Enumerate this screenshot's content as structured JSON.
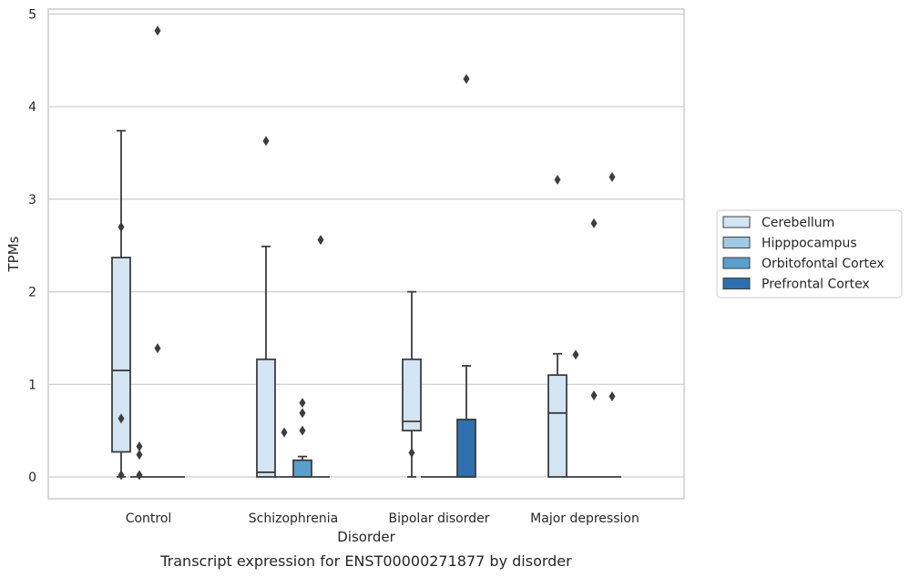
{
  "chart_data": {
    "type": "box",
    "title": "",
    "xlabel": "Disorder",
    "ylabel": "TPMs",
    "caption": "Transcript expression for ENST00000271877 by disorder",
    "ylim": [
      -0.23,
      5.07
    ],
    "yticks": [
      "0",
      "1",
      "2",
      "3",
      "4",
      "5"
    ],
    "grid": "horizontal",
    "legend_position": "right",
    "categories": [
      "Control",
      "Schizophrenia",
      "Bipolar disorder",
      "Major depression"
    ],
    "series": [
      {
        "name": "Cerebellum",
        "color": "#d3e4f3",
        "boxes": [
          {
            "q1": 0.27,
            "median": 1.15,
            "q3": 2.37,
            "whisker_low": 0.0,
            "whisker_high": 3.74,
            "outliers": [
              2.7,
              0.63,
              0.02
            ]
          },
          {
            "q1": 0.0,
            "median": 0.05,
            "q3": 1.27,
            "whisker_low": 0.0,
            "whisker_high": 2.49,
            "outliers": [
              3.63
            ]
          },
          {
            "q1": 0.5,
            "median": 0.6,
            "q3": 1.27,
            "whisker_low": 0.0,
            "whisker_high": 2.0,
            "outliers": [
              0.26
            ]
          },
          {
            "q1": 0.0,
            "median": 0.69,
            "q3": 1.1,
            "whisker_low": 0.0,
            "whisker_high": 1.33,
            "outliers": [
              3.21
            ]
          }
        ]
      },
      {
        "name": "Hipppocampus",
        "color": "#9fc8e2",
        "boxes": [
          {
            "q1": 0.0,
            "median": 0.0,
            "q3": 0.0,
            "whisker_low": 0.0,
            "whisker_high": 0.0,
            "outliers": [
              0.33,
              0.24,
              0.02
            ]
          },
          {
            "q1": 0.0,
            "median": 0.0,
            "q3": 0.0,
            "whisker_low": 0.0,
            "whisker_high": 0.0,
            "outliers": [
              0.48
            ]
          },
          {
            "q1": 0.0,
            "median": 0.0,
            "q3": 0.0,
            "whisker_low": 0.0,
            "whisker_high": 0.0,
            "outliers": []
          },
          {
            "q1": 0.0,
            "median": 0.0,
            "q3": 0.0,
            "whisker_low": 0.0,
            "whisker_high": 0.0,
            "outliers": [
              1.32
            ]
          }
        ]
      },
      {
        "name": "Orbitofontal Cortex",
        "color": "#5a9fcc",
        "boxes": [
          {
            "q1": 0.0,
            "median": 0.0,
            "q3": 0.0,
            "whisker_low": 0.0,
            "whisker_high": 0.0,
            "outliers": [
              1.39,
              4.82
            ]
          },
          {
            "q1": 0.0,
            "median": 0.0,
            "q3": 0.18,
            "whisker_low": 0.0,
            "whisker_high": 0.22,
            "outliers": [
              0.8,
              0.69,
              0.5
            ]
          },
          {
            "q1": 0.0,
            "median": 0.0,
            "q3": 0.0,
            "whisker_low": 0.0,
            "whisker_high": 0.0,
            "outliers": []
          },
          {
            "q1": 0.0,
            "median": 0.0,
            "q3": 0.0,
            "whisker_low": 0.0,
            "whisker_high": 0.0,
            "outliers": [
              2.74,
              0.88
            ]
          }
        ]
      },
      {
        "name": "Prefrontal Cortex",
        "color": "#2e6faf",
        "boxes": [
          {
            "q1": 0.0,
            "median": 0.0,
            "q3": 0.0,
            "whisker_low": 0.0,
            "whisker_high": 0.0,
            "outliers": []
          },
          {
            "q1": 0.0,
            "median": 0.0,
            "q3": 0.0,
            "whisker_low": 0.0,
            "whisker_high": 0.0,
            "outliers": [
              2.56
            ]
          },
          {
            "q1": 0.0,
            "median": 0.0,
            "q3": 0.62,
            "whisker_low": 0.0,
            "whisker_high": 1.2,
            "outliers": [
              4.3
            ]
          },
          {
            "q1": 0.0,
            "median": 0.0,
            "q3": 0.0,
            "whisker_low": 0.0,
            "whisker_high": 0.0,
            "outliers": [
              3.24,
              0.87
            ]
          }
        ]
      }
    ]
  }
}
